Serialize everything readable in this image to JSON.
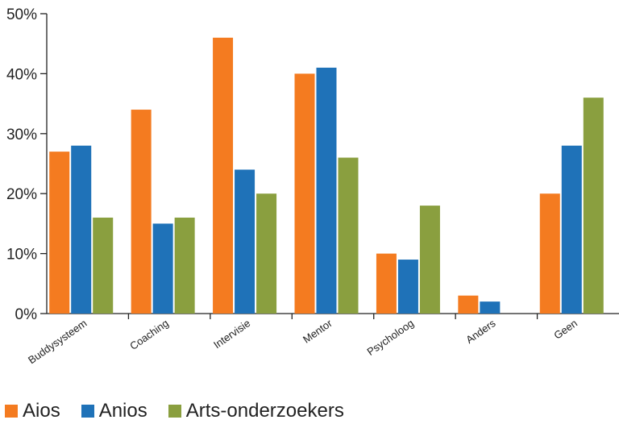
{
  "chart_data": {
    "type": "bar",
    "categories": [
      "Buddysysteem",
      "Coaching",
      "Intervisie",
      "Mentor",
      "Psycholoog",
      "Anders",
      "Geen"
    ],
    "series": [
      {
        "name": "Aios",
        "color": "#f47b20",
        "values": [
          27,
          34,
          46,
          40,
          10,
          3,
          20
        ]
      },
      {
        "name": "Anios",
        "color": "#1f72b8",
        "values": [
          28,
          15,
          24,
          41,
          9,
          2,
          28
        ]
      },
      {
        "name": "Arts-onderzoekers",
        "color": "#8a9f3f",
        "values": [
          16,
          16,
          20,
          26,
          18,
          0,
          36
        ]
      }
    ],
    "ylim": [
      0,
      50
    ],
    "yticks": [
      0,
      10,
      20,
      30,
      40,
      50
    ],
    "ytick_labels": [
      "0%",
      "10%",
      "20%",
      "30%",
      "40%",
      "50%"
    ],
    "legend_position": "bottom-left",
    "grid": false
  }
}
